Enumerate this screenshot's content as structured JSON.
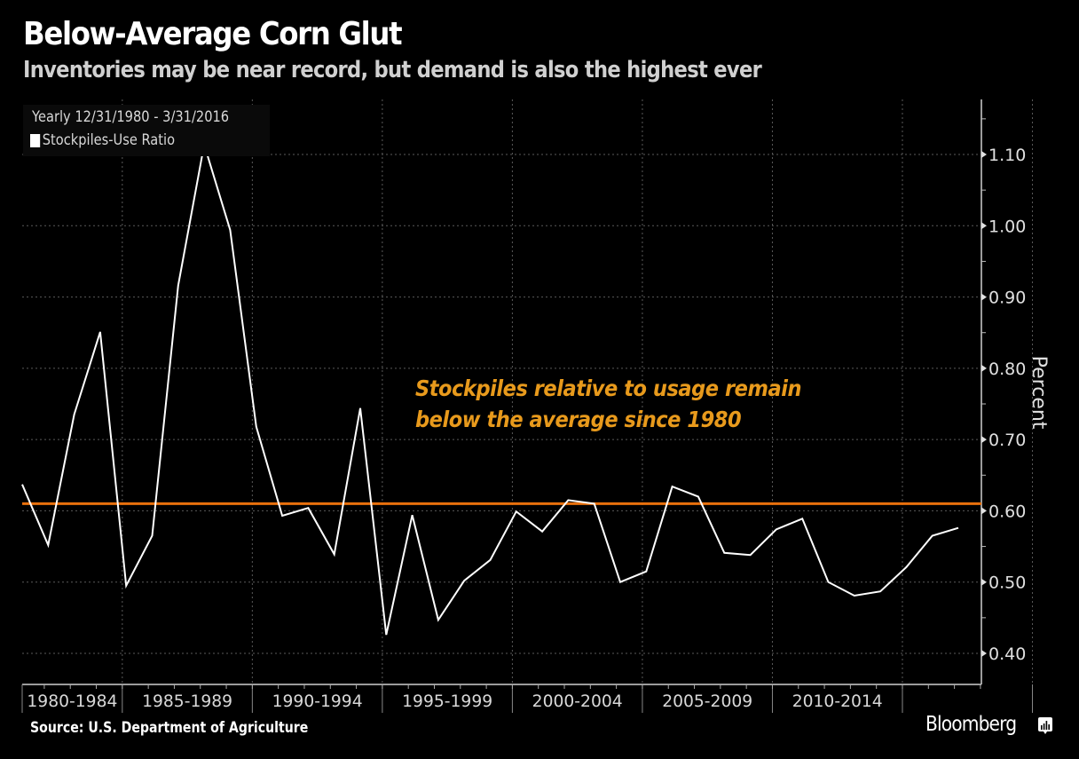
{
  "header": {
    "title": "Below-Average Corn Glut",
    "subtitle": "Inventories may be near record, but demand is also the highest ever"
  },
  "legend": {
    "period": "Yearly 12/31/1980 - 3/31/2016",
    "series_label": "Stockpiles-Use Ratio"
  },
  "annotation": {
    "line1": "Stockpiles relative to usage remain",
    "line2": "below the average since 1980"
  },
  "footer": {
    "source": "Source: U.S. Department of Agriculture",
    "brand": "Bloomberg"
  },
  "colors": {
    "background": "#000000",
    "series": "#ffffff",
    "average_line": "#e8700c",
    "annotation": "#e89a1c",
    "grid": "#5a5a5a"
  },
  "chart_data": {
    "type": "line",
    "title": "Below-Average Corn Glut",
    "subtitle": "Inventories may be near record, but demand is also the highest ever",
    "xlabel": "",
    "ylabel": "Percent",
    "ylim": [
      0.37,
      1.18
    ],
    "yticks": [
      0.4,
      0.5,
      0.6,
      0.7,
      0.8,
      0.9,
      1.0,
      1.1
    ],
    "ytick_labels": [
      "0.40",
      "0.50",
      "0.60",
      "0.70",
      "0.80",
      "0.90",
      "1.00",
      "1.10"
    ],
    "y_axis_side": "right",
    "x_groups": [
      "1980-1984",
      "1985-1989",
      "1990-1994",
      "1995-1999",
      "2000-2004",
      "2005-2009",
      "2010-2014"
    ],
    "grid": true,
    "legend_position": "top-left",
    "x": [
      1980,
      1981,
      1982,
      1983,
      1984,
      1985,
      1986,
      1987,
      1988,
      1989,
      1990,
      1991,
      1992,
      1993,
      1994,
      1995,
      1996,
      1997,
      1998,
      1999,
      2000,
      2001,
      2002,
      2003,
      2004,
      2005,
      2006,
      2007,
      2008,
      2009,
      2010,
      2011,
      2012,
      2013,
      2014,
      2015,
      2016
    ],
    "series": [
      {
        "name": "Stockpiles-Use Ratio",
        "values": [
          0.637,
          0.552,
          0.735,
          0.851,
          0.495,
          0.565,
          0.916,
          1.114,
          0.994,
          0.718,
          0.593,
          0.604,
          0.539,
          0.744,
          0.426,
          0.594,
          0.447,
          0.502,
          0.531,
          0.599,
          0.571,
          0.615,
          0.61,
          0.5,
          0.515,
          0.634,
          0.62,
          0.541,
          0.538,
          0.574,
          0.589,
          0.5,
          0.481,
          0.487,
          0.521,
          0.565,
          0.576
        ]
      }
    ],
    "reference_lines": [
      {
        "name": "Average since 1980",
        "value": 0.61
      }
    ],
    "annotations": [
      "Stockpiles relative to usage remain below the average since 1980"
    ]
  }
}
